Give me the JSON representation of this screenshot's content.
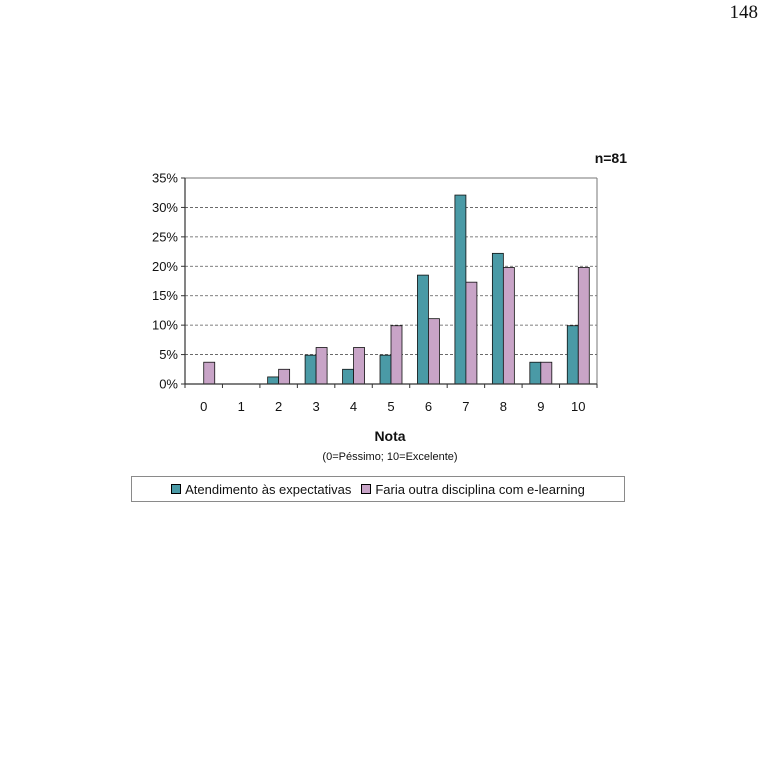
{
  "page": {
    "number": "148"
  },
  "chart_data": {
    "type": "bar",
    "sample_note": "n=81",
    "title": "",
    "xlabel": "Nota",
    "xlabel_sub": "(0=Péssimo; 10=Excelente)",
    "ylabel": "",
    "ylim": [
      0,
      35
    ],
    "yticks": [
      "0%",
      "5%",
      "10%",
      "15%",
      "20%",
      "25%",
      "30%",
      "35%"
    ],
    "ytick_values": [
      0,
      5,
      10,
      15,
      20,
      25,
      30,
      35
    ],
    "grid": "horizontal dashed",
    "legend_position": "bottom",
    "categories": [
      "0",
      "1",
      "2",
      "3",
      "4",
      "5",
      "6",
      "7",
      "8",
      "9",
      "10"
    ],
    "series": [
      {
        "name": "Atendimento às expectativas",
        "color": "#4a9aa6",
        "values": [
          0,
          0,
          1.2,
          4.9,
          2.5,
          4.9,
          18.5,
          32.1,
          22.2,
          3.7,
          9.9
        ]
      },
      {
        "name": "Faria outra disciplina com e-learning",
        "color": "#c8a4c7",
        "values": [
          3.7,
          0,
          2.5,
          6.2,
          6.2,
          9.9,
          11.1,
          17.3,
          19.8,
          3.7,
          19.8
        ]
      }
    ]
  }
}
